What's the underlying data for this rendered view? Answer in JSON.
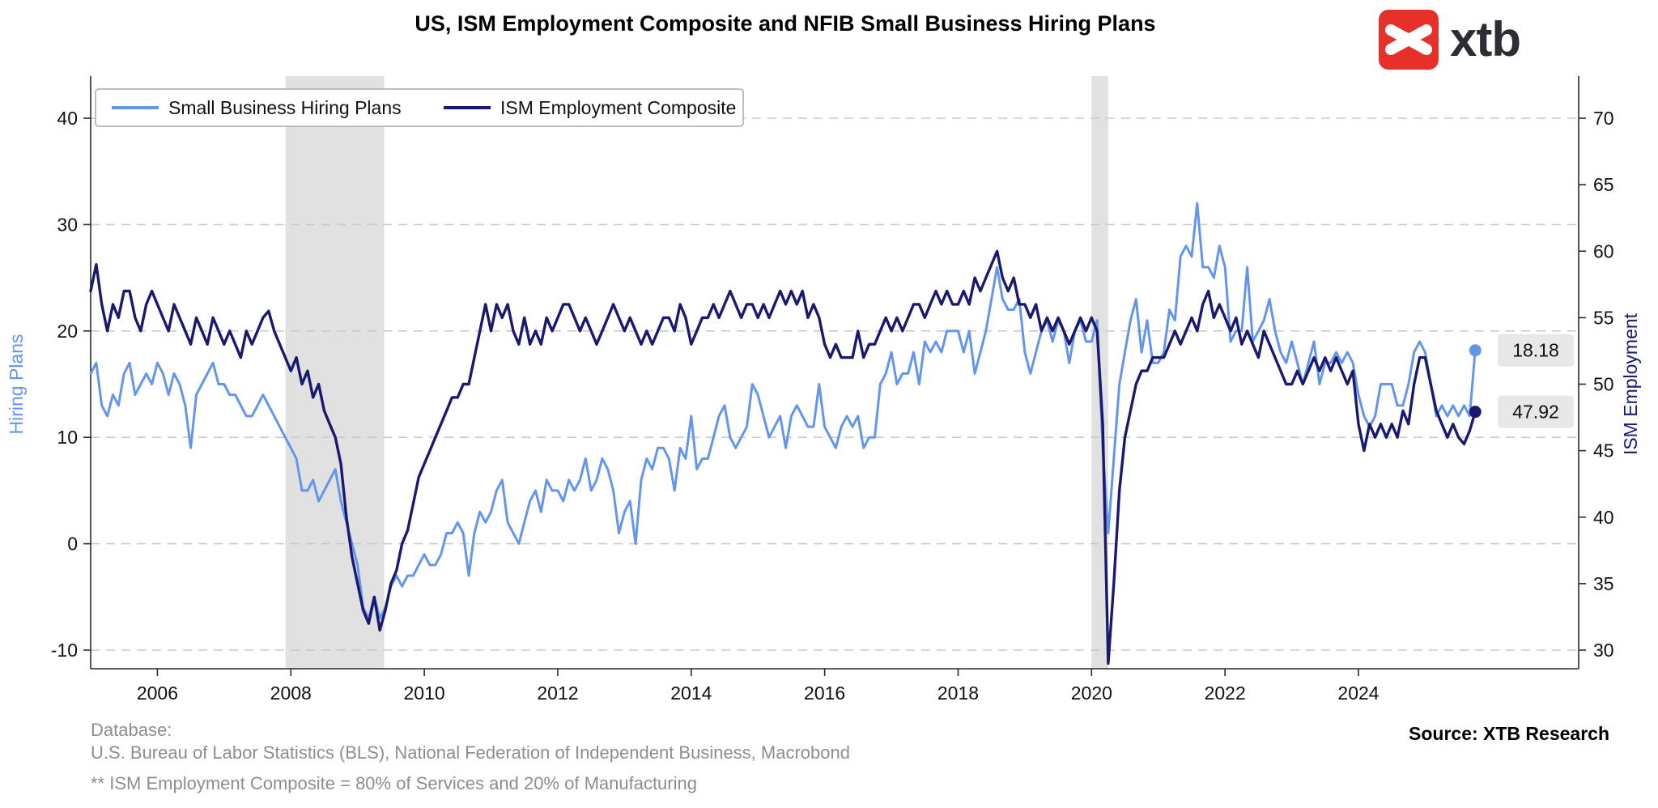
{
  "header": {
    "title": "US, ISM Employment Composite and NFIB Small Business Hiring Plans",
    "logo_text": "xtb"
  },
  "footer": {
    "database_label": "Database:",
    "database_line": "U.S. Bureau of Labor Statistics (BLS), National Federation of Independent Business, Macrobond",
    "note": "** ISM Employment Composite = 80% of Services and 20% of Manufacturing",
    "source": "Source: XTB Research"
  },
  "chart_data": {
    "type": "line",
    "title": "US, ISM Employment Composite and NFIB Small Business Hiring Plans",
    "x_start_year": 2005,
    "x_months_per_step": 1,
    "x_domain": [
      2005.0,
      2027.3
    ],
    "x_ticks": [
      2006,
      2008,
      2010,
      2012,
      2014,
      2016,
      2018,
      2020,
      2022,
      2024
    ],
    "grid": "dashed-horizontal",
    "legend_position": "top-left-inside",
    "left_axis": {
      "label": "Hiring Plans",
      "ticks": [
        40,
        30,
        20,
        10,
        0,
        -10
      ]
    },
    "right_axis": {
      "label": "ISM Employment",
      "ticks": [
        70,
        65,
        60,
        55,
        50,
        45,
        40,
        35,
        30
      ]
    },
    "recession_bands": [
      [
        2007.92,
        2009.4
      ],
      [
        2020.0,
        2020.25
      ]
    ],
    "colors": {
      "hiring_plans": "#6495ED",
      "ism_composite": "#191970",
      "grid": "#c9c9c9",
      "recession_band": "#e1e1e1",
      "spine": "#2a2a2a",
      "tick_text": "#111111",
      "badge_bg": "#e7e7e7",
      "legend_border": "#a9a9a9"
    },
    "series": [
      {
        "name": "Small Business Hiring Plans",
        "axis": "left",
        "color": "#6495ED",
        "width": 3.0,
        "end_label": "18.18",
        "values": [
          16,
          17,
          13,
          12,
          14,
          13,
          16,
          17,
          14,
          15,
          16,
          15,
          17,
          16,
          14,
          16,
          15,
          13,
          9,
          14,
          15,
          16,
          17,
          15,
          15,
          14,
          14,
          13,
          12,
          12,
          13,
          14,
          13,
          12,
          11,
          10,
          9,
          8,
          5,
          5,
          6,
          4,
          5,
          6,
          7,
          4,
          2,
          0,
          -2,
          -6,
          -7,
          -5,
          -7,
          -6,
          -4,
          -3,
          -4,
          -3,
          -3,
          -2,
          -1,
          -2,
          -2,
          -1,
          1,
          1,
          2,
          1,
          -3,
          1,
          3,
          2,
          3,
          5,
          6,
          2,
          1,
          0,
          2,
          4,
          5,
          3,
          6,
          5,
          5,
          4,
          6,
          5,
          6,
          8,
          5,
          6,
          8,
          7,
          5,
          1,
          3,
          4,
          0,
          6,
          8,
          7,
          9,
          9,
          8,
          5,
          9,
          8,
          12,
          7,
          8,
          8,
          10,
          12,
          13,
          10,
          9,
          10,
          11,
          15,
          14,
          12,
          10,
          11,
          12,
          9,
          12,
          13,
          12,
          11,
          11,
          15,
          11,
          10,
          9,
          11,
          12,
          11,
          12,
          9,
          10,
          10,
          15,
          16,
          18,
          15,
          16,
          16,
          18,
          15,
          19,
          18,
          19,
          18,
          20,
          20,
          20,
          18,
          20,
          16,
          18,
          20,
          23,
          26,
          23,
          22,
          22,
          23,
          18,
          16,
          18,
          20,
          21,
          19,
          21,
          20,
          17,
          20,
          21,
          19,
          19,
          21,
          9,
          1,
          8,
          15,
          18,
          21,
          23,
          18,
          21,
          17,
          17,
          18,
          22,
          21,
          27,
          28,
          27,
          32,
          26,
          26,
          25,
          28,
          26,
          19,
          20,
          20,
          26,
          19,
          20,
          21,
          23,
          20,
          18,
          17,
          19,
          17,
          15,
          17,
          19,
          15,
          17,
          17,
          18,
          17,
          18,
          17,
          14,
          12,
          11,
          12,
          15,
          15,
          15,
          13,
          13,
          15,
          18,
          19,
          18,
          15,
          12,
          13,
          12,
          13,
          12,
          13,
          12,
          18.18
        ]
      },
      {
        "name": "ISM Employment Composite",
        "axis": "right",
        "color": "#191970",
        "width": 3.4,
        "end_label": "47.92",
        "values": [
          57,
          59,
          56,
          54,
          56,
          55,
          57,
          57,
          55,
          54,
          56,
          57,
          56,
          55,
          54,
          56,
          55,
          54,
          53,
          55,
          54,
          53,
          55,
          54,
          53,
          54,
          53,
          52,
          54,
          53,
          54,
          55,
          55.5,
          54,
          53,
          52,
          51,
          52,
          50,
          51,
          49,
          50,
          48,
          47,
          46,
          44,
          40,
          37,
          35,
          33,
          32,
          34,
          31.5,
          33,
          35,
          36,
          38,
          39,
          41,
          43,
          44,
          45,
          46,
          47,
          48,
          49,
          49,
          50,
          50,
          52,
          54,
          56,
          54,
          56,
          55,
          56,
          54,
          53,
          55,
          53,
          54,
          53,
          55,
          54,
          55,
          56,
          56,
          55,
          54,
          55,
          54,
          53,
          54,
          55,
          56,
          55,
          54,
          55,
          54,
          53,
          54,
          53,
          54,
          55,
          55,
          54,
          56,
          55,
          53,
          54,
          55,
          55,
          56,
          55,
          56,
          57,
          56,
          55,
          56,
          56,
          55,
          56,
          55,
          56,
          57,
          56,
          57,
          56,
          57,
          55,
          56,
          55,
          53,
          52,
          53,
          52,
          52,
          52,
          54,
          52,
          53,
          53,
          54,
          55,
          54,
          55,
          54,
          55,
          56,
          56,
          55,
          56,
          57,
          56,
          57,
          56,
          56,
          57,
          56,
          58,
          57,
          58,
          59,
          60,
          58,
          57,
          58,
          56,
          56,
          55,
          56,
          54,
          55,
          54,
          55,
          54,
          53,
          54,
          55,
          54,
          55,
          54,
          47,
          29,
          35,
          42,
          46,
          48,
          50,
          51,
          51,
          52,
          52,
          52,
          53,
          54,
          53,
          54,
          55,
          54,
          56,
          57,
          55,
          56,
          55,
          54,
          55,
          53,
          54,
          53,
          52,
          54,
          53,
          52,
          51,
          50,
          50,
          51,
          50,
          51,
          52,
          51,
          52,
          51,
          52,
          51,
          50,
          51,
          47,
          45,
          47,
          46,
          47,
          46,
          47,
          46,
          48,
          47,
          50,
          52,
          52,
          50,
          48,
          47,
          46,
          47,
          46,
          45.5,
          46.5,
          47.92
        ]
      }
    ]
  }
}
